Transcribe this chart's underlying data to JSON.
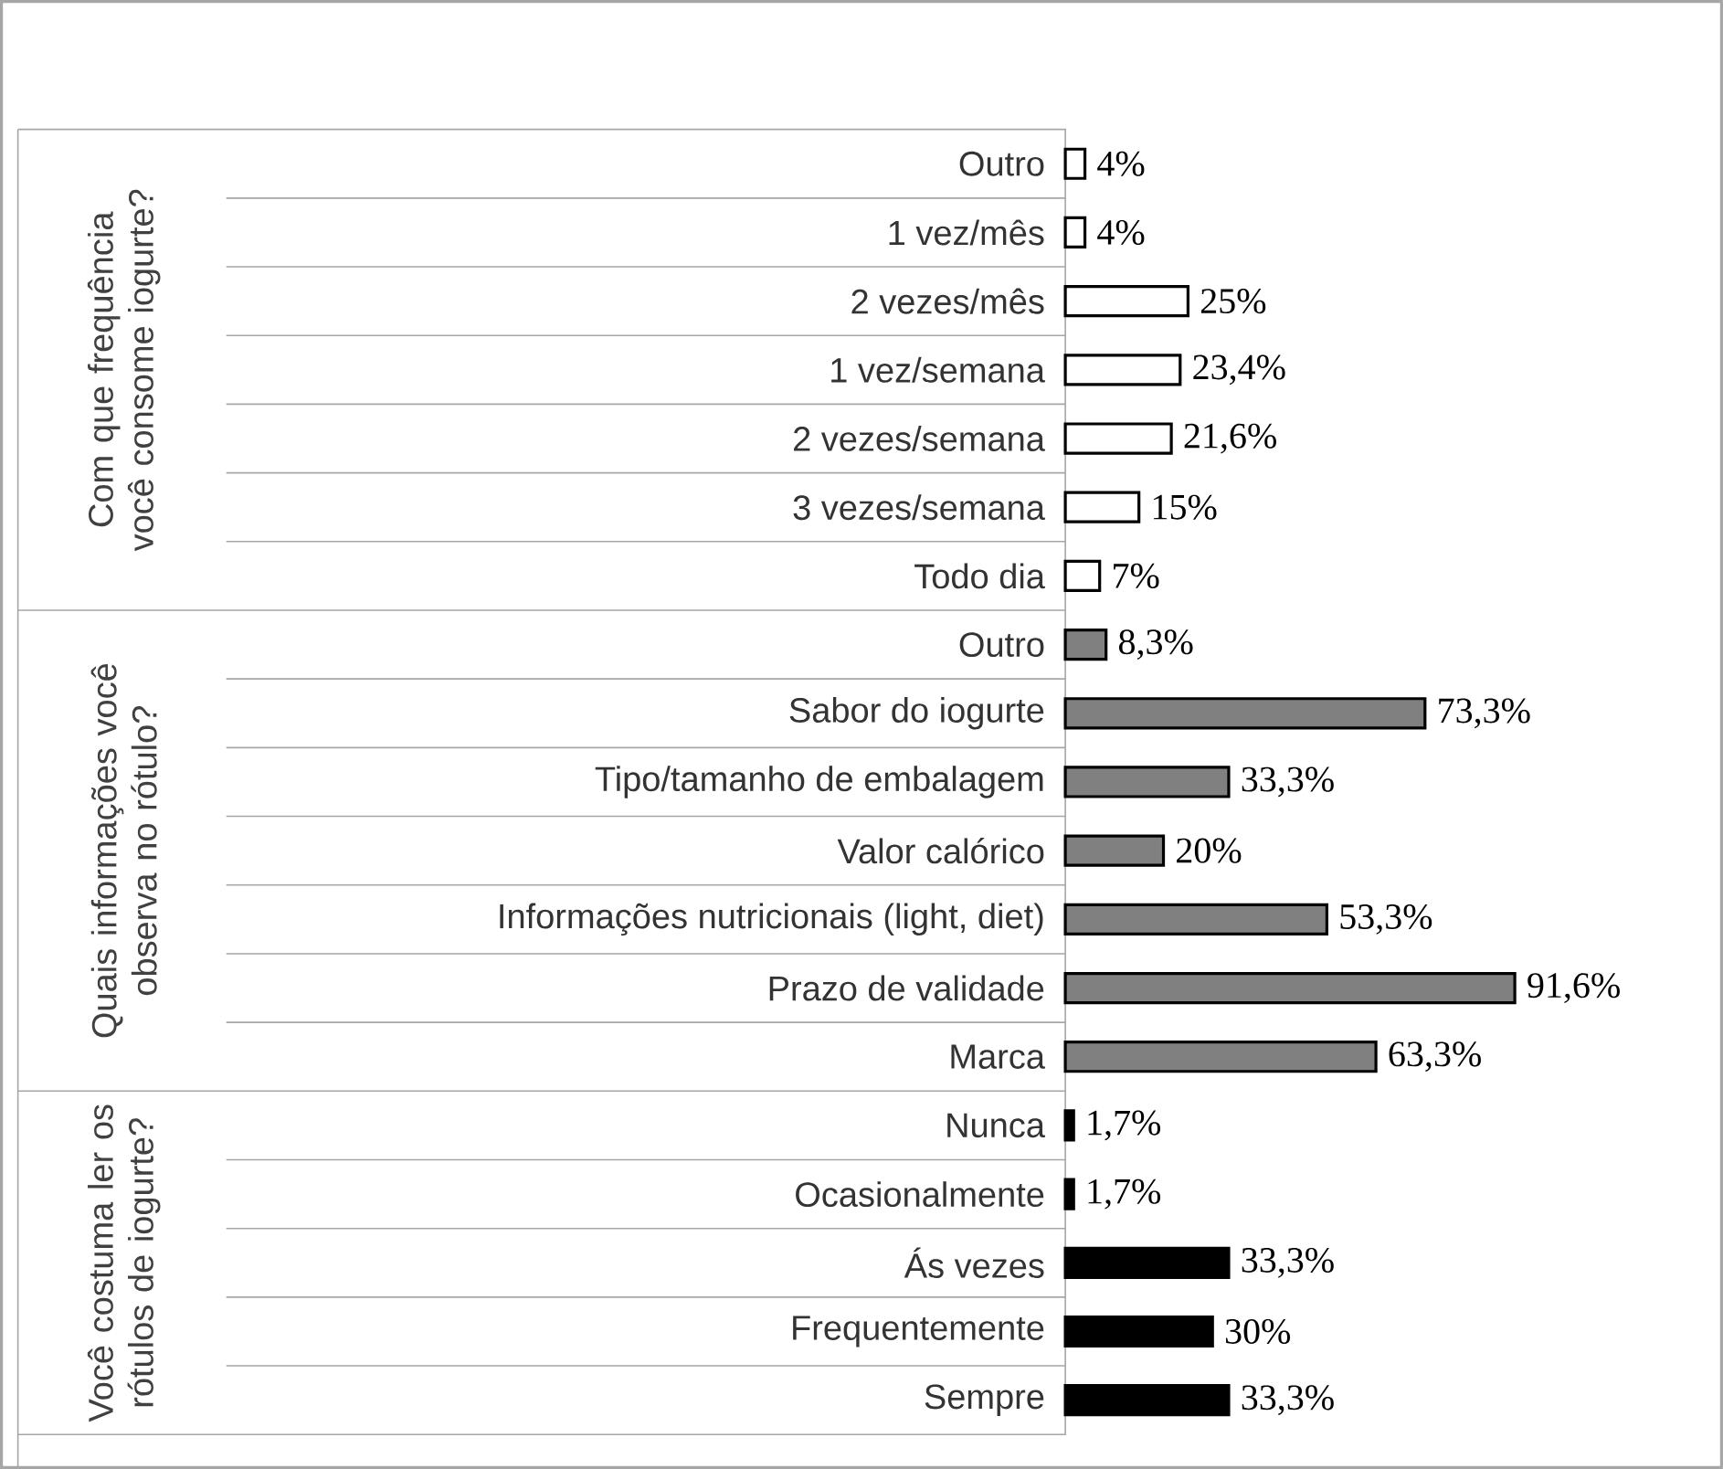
{
  "chart_data": {
    "type": "bar",
    "orientation": "horizontal",
    "tick_labels": "y",
    "annotations": [
      "Com que frequência você consome iogurte?",
      "Quais informações você observa no rótulo?",
      "Você costuma ler os rótulos de iogurte?"
    ],
    "categories": [
      "Outro",
      "1 vez/mês",
      "2 vezes/mês",
      "1 vez/semana",
      "2 vezes/semana",
      "3 vezes/semana",
      "Todo dia",
      "Outro",
      "Sabor do iogurte",
      "Tipo/tamanho de embalagem",
      "Valor calórico",
      "Informações nutricionais (light, diet)",
      "Prazo de validade",
      "Marca",
      "Nunca",
      "Ocasionalmente",
      "Ás vezes",
      "Frequentemente",
      "Sempre"
    ],
    "series": [
      {
        "color": "#ffffff",
        "values": [
          4,
          4,
          25,
          23.4,
          21.6,
          15,
          7,
          null,
          null,
          null,
          null,
          null,
          null,
          null,
          null,
          null,
          null,
          null,
          null
        ],
        "value_labels": [
          "4%",
          "4%",
          "25%",
          "23,4%",
          "21,6%",
          "15%",
          "7%",
          null,
          null,
          null,
          null,
          null,
          null,
          null,
          null,
          null,
          null,
          null,
          null
        ]
      },
      {
        "color": "#808080",
        "values": [
          null,
          null,
          null,
          null,
          null,
          null,
          null,
          8.3,
          73.3,
          33.3,
          20,
          53.3,
          91.6,
          63.3,
          null,
          null,
          null,
          null,
          null
        ],
        "value_labels": [
          null,
          null,
          null,
          null,
          null,
          null,
          null,
          "8,3%",
          "73,3%",
          "33,3%",
          "20%",
          "53,3%",
          "91,6%",
          "63,3%",
          null,
          null,
          null,
          null,
          null
        ]
      },
      {
        "color": "#000000",
        "values": [
          null,
          null,
          null,
          null,
          null,
          null,
          null,
          null,
          null,
          null,
          null,
          null,
          null,
          null,
          1.7,
          1.7,
          33.3,
          30,
          33.3
        ],
        "value_labels": [
          null,
          null,
          null,
          null,
          null,
          null,
          null,
          null,
          null,
          null,
          null,
          null,
          null,
          null,
          "1,7%",
          "1,7%",
          "33,3%",
          "30%",
          "33,3%"
        ]
      }
    ]
  }
}
